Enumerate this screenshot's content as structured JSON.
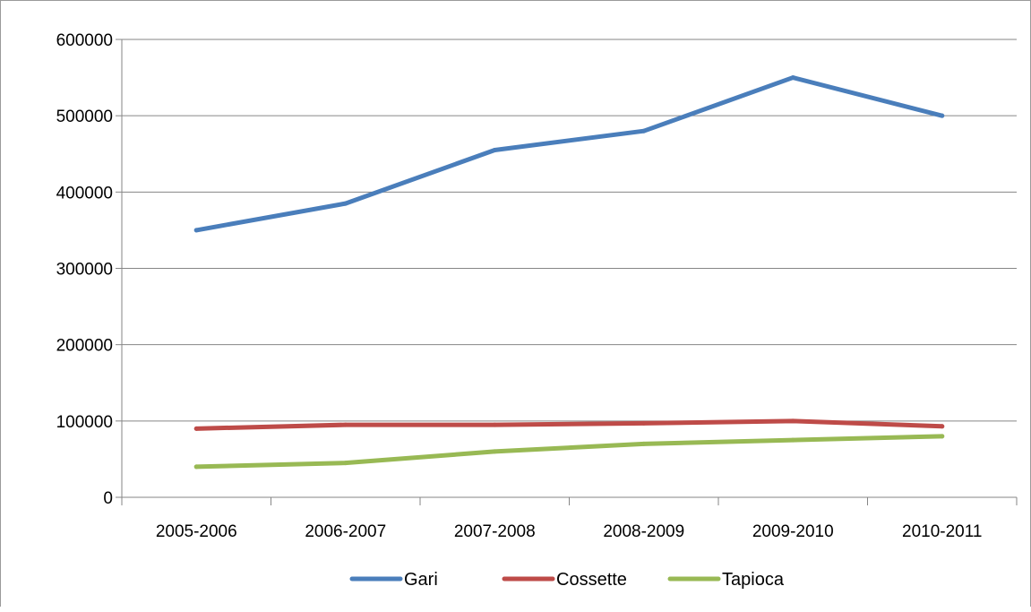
{
  "chart_data": {
    "type": "line",
    "categories": [
      "2005-2006",
      "2006-2007",
      "2007-2008",
      "2008-2009",
      "2009-2010",
      "2010-2011"
    ],
    "series": [
      {
        "name": "Gari",
        "color": "#4a7ebb",
        "values": [
          350000,
          385000,
          455000,
          480000,
          550000,
          500000
        ]
      },
      {
        "name": "Cossette",
        "color": "#be4b48",
        "values": [
          90000,
          95000,
          95000,
          97000,
          100000,
          93000
        ]
      },
      {
        "name": "Tapioca",
        "color": "#98b954",
        "values": [
          40000,
          45000,
          60000,
          70000,
          75000,
          80000
        ]
      }
    ],
    "ylim": [
      0,
      600000
    ],
    "yticks": [
      0,
      100000,
      200000,
      300000,
      400000,
      500000,
      600000
    ],
    "grid": true,
    "legend_position": "bottom"
  }
}
